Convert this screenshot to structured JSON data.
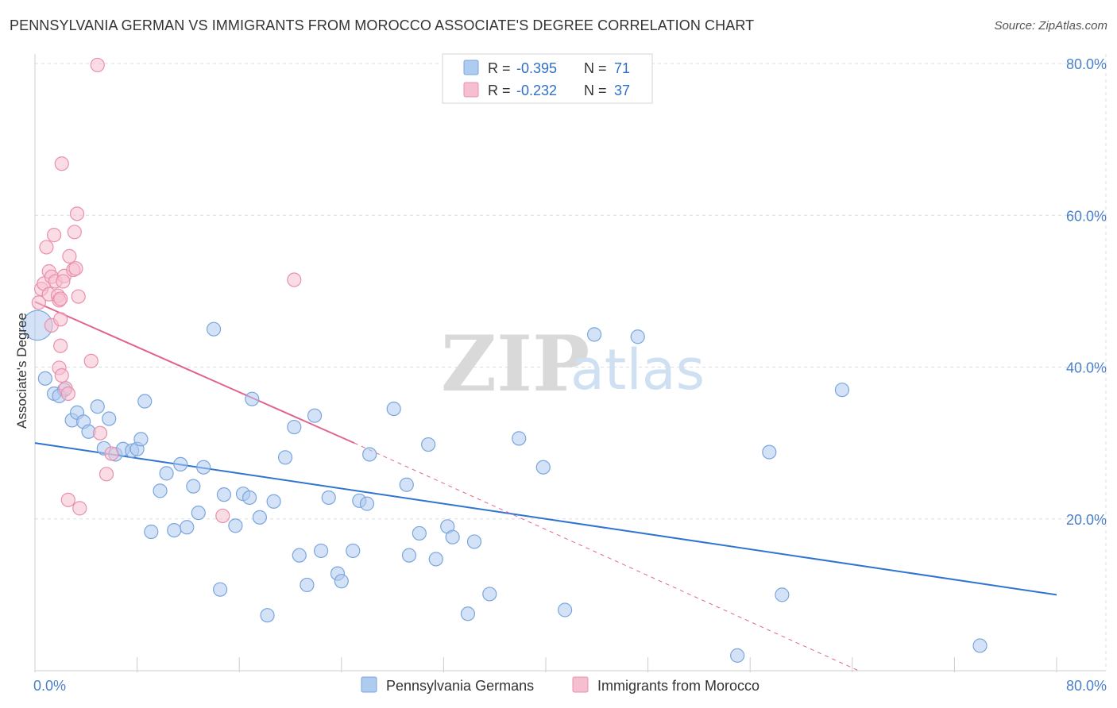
{
  "title": "PENNSYLVANIA GERMAN VS IMMIGRANTS FROM MOROCCO ASSOCIATE'S DEGREE CORRELATION CHART",
  "source": "Source: ZipAtlas.com",
  "watermark": {
    "zip": "ZIP",
    "atlas": "atlas"
  },
  "colors": {
    "blue_fill": "#aecbf0",
    "blue_stroke": "#7aa6dc",
    "blue_line": "#2f74d0",
    "pink_fill": "#f5bfd0",
    "pink_stroke": "#ea8fae",
    "pink_line": "#e0648f",
    "grid": "#dddddd",
    "axis_text": "#4a7fc8"
  },
  "legend": {
    "rows": [
      {
        "r_label": "R = ",
        "r_value": "-0.395",
        "n_label": "N = ",
        "n_value": "71"
      },
      {
        "r_label": "R = ",
        "r_value": "-0.232",
        "n_label": "N = ",
        "n_value": "37"
      }
    ]
  },
  "chart_data": {
    "type": "scatter",
    "title": "PENNSYLVANIA GERMAN VS IMMIGRANTS FROM MOROCCO ASSOCIATE'S DEGREE CORRELATION CHART",
    "xlabel": "",
    "ylabel": "Associate's Degree",
    "xlim": [
      0,
      80
    ],
    "ylim": [
      0,
      80
    ],
    "x_tick_labels": [
      "0.0%",
      "80.0%"
    ],
    "y_tick_labels": [
      "20.0%",
      "40.0%",
      "60.0%",
      "80.0%"
    ],
    "y_ticks": [
      20,
      40,
      60,
      80
    ],
    "grid": true,
    "legend_position": "top-center",
    "series": [
      {
        "name": "Pennsylvania Germans",
        "color": "blue",
        "trend": {
          "x0": 0,
          "y0": 30.0,
          "x1": 80,
          "y1": 10.0,
          "dashed_from": null
        },
        "points": [
          [
            0.2,
            45.5,
            2.2
          ],
          [
            0.8,
            38.5,
            1
          ],
          [
            1.5,
            36.5,
            1
          ],
          [
            2.3,
            37.0,
            1
          ],
          [
            1.9,
            36.2,
            1
          ],
          [
            2.9,
            33.0,
            1
          ],
          [
            3.3,
            34.0,
            1
          ],
          [
            3.8,
            32.8,
            1
          ],
          [
            4.2,
            31.5,
            1
          ],
          [
            4.9,
            34.8,
            1
          ],
          [
            5.4,
            29.3,
            1
          ],
          [
            5.8,
            33.2,
            1
          ],
          [
            6.3,
            28.5,
            1
          ],
          [
            6.9,
            29.2,
            1
          ],
          [
            7.6,
            29.0,
            1
          ],
          [
            8.0,
            29.2,
            1
          ],
          [
            8.3,
            30.5,
            1
          ],
          [
            8.6,
            35.5,
            1
          ],
          [
            9.1,
            18.3,
            1
          ],
          [
            9.8,
            23.7,
            1
          ],
          [
            10.3,
            26.0,
            1
          ],
          [
            10.9,
            18.5,
            1
          ],
          [
            11.4,
            27.2,
            1
          ],
          [
            11.9,
            18.9,
            1
          ],
          [
            12.4,
            24.3,
            1
          ],
          [
            12.8,
            20.8,
            1
          ],
          [
            13.2,
            26.8,
            1
          ],
          [
            14.0,
            45.0,
            1
          ],
          [
            14.5,
            10.7,
            1
          ],
          [
            14.8,
            23.2,
            1
          ],
          [
            15.7,
            19.1,
            1
          ],
          [
            16.3,
            23.3,
            1
          ],
          [
            16.8,
            22.8,
            1
          ],
          [
            17.0,
            35.8,
            1
          ],
          [
            17.6,
            20.2,
            1
          ],
          [
            18.2,
            7.3,
            1
          ],
          [
            18.7,
            22.3,
            1
          ],
          [
            19.6,
            28.1,
            1
          ],
          [
            20.3,
            32.1,
            1
          ],
          [
            20.7,
            15.2,
            1
          ],
          [
            21.3,
            11.3,
            1
          ],
          [
            21.9,
            33.6,
            1
          ],
          [
            22.4,
            15.8,
            1
          ],
          [
            23.0,
            22.8,
            1
          ],
          [
            23.7,
            12.8,
            1
          ],
          [
            24.0,
            11.8,
            1
          ],
          [
            24.9,
            15.8,
            1
          ],
          [
            25.4,
            22.4,
            1
          ],
          [
            26.2,
            28.5,
            1
          ],
          [
            26.0,
            22.0,
            1
          ],
          [
            28.1,
            34.5,
            1
          ],
          [
            29.1,
            24.5,
            1
          ],
          [
            29.3,
            15.2,
            1
          ],
          [
            30.1,
            18.1,
            1
          ],
          [
            30.8,
            29.8,
            1
          ],
          [
            31.4,
            14.7,
            1
          ],
          [
            32.3,
            19.0,
            1
          ],
          [
            32.7,
            17.6,
            1
          ],
          [
            33.9,
            7.5,
            1
          ],
          [
            34.4,
            17.0,
            1
          ],
          [
            35.6,
            10.1,
            1
          ],
          [
            37.9,
            30.6,
            1
          ],
          [
            39.8,
            26.8,
            1
          ],
          [
            41.5,
            8.0,
            1
          ],
          [
            43.8,
            44.3,
            1
          ],
          [
            47.2,
            44.0,
            1
          ],
          [
            55.0,
            2.0,
            1
          ],
          [
            57.5,
            28.8,
            1
          ],
          [
            58.5,
            10.0,
            1
          ],
          [
            63.2,
            37.0,
            1
          ],
          [
            74.0,
            3.3,
            1
          ]
        ]
      },
      {
        "name": "Immigrants from Morocco",
        "color": "pink",
        "trend": {
          "x0": 0,
          "y0": 48.6,
          "x1": 25,
          "y1": 30.0,
          "dashed_from": 25,
          "dashed_to_x": 64.5,
          "dashed_to_y": 0
        },
        "points": [
          [
            0.3,
            48.5,
            1
          ],
          [
            0.5,
            50.3,
            1
          ],
          [
            0.7,
            51.0,
            1
          ],
          [
            0.9,
            55.8,
            1
          ],
          [
            1.1,
            52.6,
            1
          ],
          [
            1.3,
            51.9,
            1
          ],
          [
            1.1,
            49.6,
            1
          ],
          [
            1.3,
            45.5,
            1
          ],
          [
            1.5,
            57.4,
            1
          ],
          [
            1.6,
            51.3,
            1
          ],
          [
            1.8,
            49.4,
            1
          ],
          [
            1.9,
            48.8,
            1
          ],
          [
            2.0,
            46.3,
            1
          ],
          [
            2.0,
            42.8,
            1
          ],
          [
            1.9,
            39.9,
            1
          ],
          [
            2.1,
            38.9,
            1
          ],
          [
            2.3,
            52.0,
            1
          ],
          [
            2.2,
            51.3,
            1
          ],
          [
            2.4,
            37.2,
            1
          ],
          [
            2.6,
            36.5,
            1
          ],
          [
            2.1,
            66.8,
            1
          ],
          [
            2.6,
            22.5,
            1
          ],
          [
            2.7,
            54.6,
            1
          ],
          [
            3.0,
            52.8,
            1
          ],
          [
            3.2,
            53.0,
            1
          ],
          [
            3.1,
            57.8,
            1
          ],
          [
            3.3,
            60.2,
            1
          ],
          [
            3.4,
            49.3,
            1
          ],
          [
            3.5,
            21.4,
            1
          ],
          [
            4.4,
            40.8,
            1
          ],
          [
            5.1,
            31.3,
            1
          ],
          [
            5.6,
            25.9,
            1
          ],
          [
            6.0,
            28.6,
            1
          ],
          [
            4.9,
            79.8,
            1
          ],
          [
            14.7,
            20.4,
            1
          ],
          [
            20.3,
            51.5,
            1
          ],
          [
            2.0,
            49.0,
            1
          ]
        ]
      }
    ],
    "bottom_legend": [
      "Pennsylvania Germans",
      "Immigrants from Morocco"
    ]
  }
}
